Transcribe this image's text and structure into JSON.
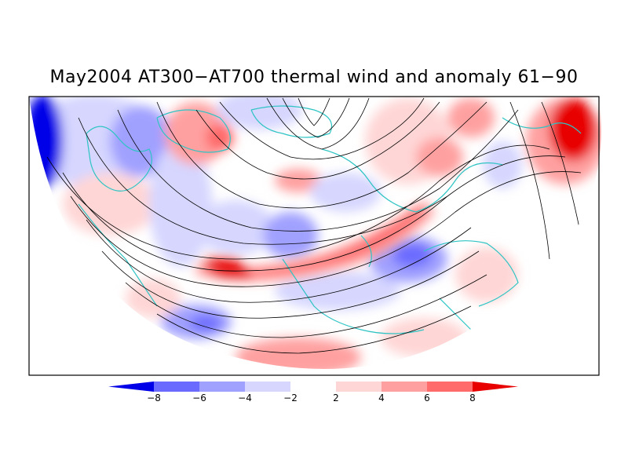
{
  "title": "May2004 AT300−AT700 thermal wind and anomaly 61−90",
  "colorbar": {
    "labels": [
      "−8",
      "−6",
      "−4",
      "−2",
      "2",
      "4",
      "6",
      "8"
    ],
    "colors": [
      "#0000e8",
      "#6a6aff",
      "#a0a0ff",
      "#d6d6ff",
      "#ffffff",
      "#ffd6d6",
      "#ffa0a0",
      "#ff6a6a",
      "#e80000"
    ]
  },
  "colors": {
    "coastline": "#2ec4c4",
    "streamline": "#000000",
    "frame": "#000000"
  }
}
